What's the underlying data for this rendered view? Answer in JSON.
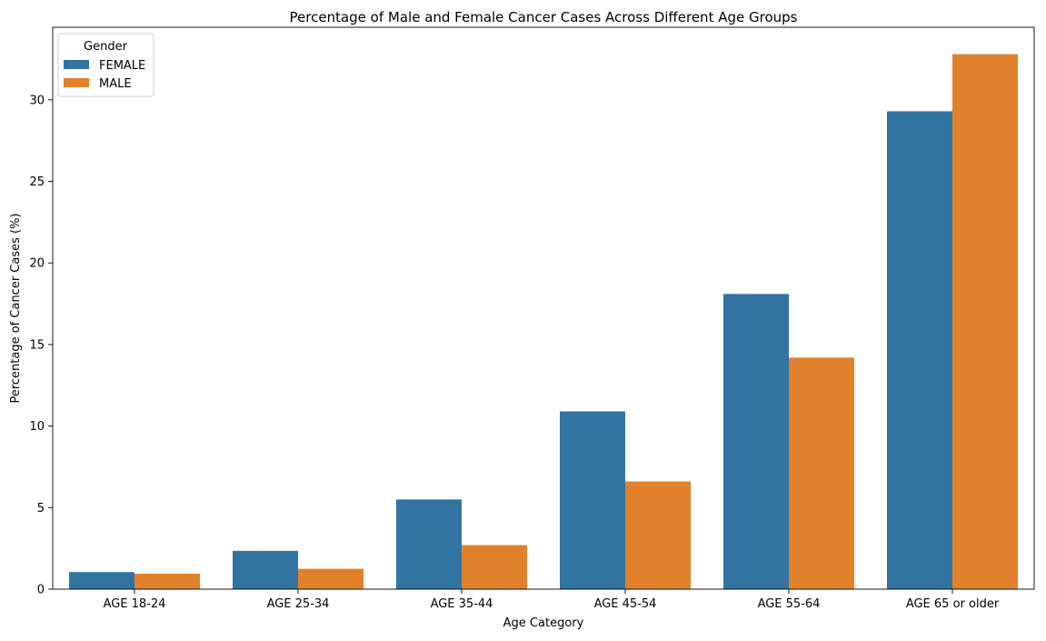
{
  "chart_data": {
    "type": "bar",
    "title": "Percentage of Male and Female Cancer Cases Across Different Age Groups",
    "xlabel": "Age Category",
    "ylabel": "Percentage of Cancer Cases (%)",
    "categories": [
      "AGE 18-24",
      "AGE 25-34",
      "AGE 35-44",
      "AGE 45-54",
      "AGE 55-64",
      "AGE 65 or older"
    ],
    "series": [
      {
        "name": "FEMALE",
        "color": "#3274a1",
        "values": [
          1.05,
          2.35,
          5.5,
          10.9,
          18.1,
          29.3
        ]
      },
      {
        "name": "MALE",
        "color": "#e1812c",
        "values": [
          0.95,
          1.25,
          2.7,
          6.6,
          14.2,
          32.8
        ]
      }
    ],
    "ylim": [
      0,
      34.45
    ],
    "yticks": [
      0,
      5,
      10,
      15,
      20,
      25,
      30
    ],
    "grid": false,
    "legend": {
      "title": "Gender",
      "position": "top-left"
    }
  }
}
